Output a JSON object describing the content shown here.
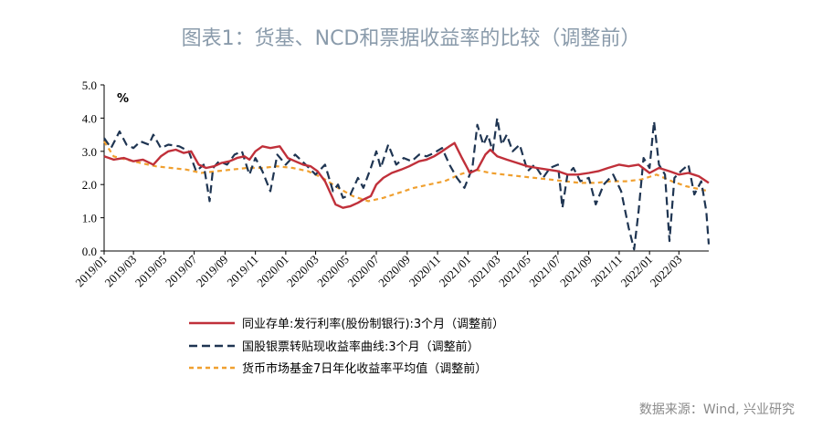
{
  "chart_data": {
    "type": "line",
    "title": "图表1：货基、NCD和票据收益率的比较（调整前）",
    "source": "数据来源：Wind, 兴业研究",
    "ylabel": "%",
    "ylim": [
      0,
      5
    ],
    "yticks": [
      "0.0",
      "1.0",
      "2.0",
      "3.0",
      "4.0",
      "5.0"
    ],
    "xticks": [
      "2019/01",
      "2019/03",
      "2019/05",
      "2019/07",
      "2019/09",
      "2019/11",
      "2020/01",
      "2020/03",
      "2020/05",
      "2020/07",
      "2020/09",
      "2020/11",
      "2021/01",
      "2021/03",
      "2021/05",
      "2021/07",
      "2021/09",
      "2021/11",
      "2022/01",
      "2022/03"
    ],
    "xrange": [
      "2019-01-01",
      "2022-04-30"
    ],
    "grid": false,
    "legend_position": "bottom",
    "series": [
      {
        "name": "同业存单:发行利率(股份制银行):3个月（调整前）",
        "color": "#c0303a",
        "dash": "solid",
        "points": [
          [
            "2019-01-01",
            2.85
          ],
          [
            "2019-01-20",
            2.75
          ],
          [
            "2019-02-10",
            2.8
          ],
          [
            "2019-03-01",
            2.7
          ],
          [
            "2019-03-20",
            2.75
          ],
          [
            "2019-04-10",
            2.6
          ],
          [
            "2019-04-25",
            2.85
          ],
          [
            "2019-05-10",
            3.0
          ],
          [
            "2019-05-25",
            3.05
          ],
          [
            "2019-06-10",
            2.95
          ],
          [
            "2019-06-25",
            3.0
          ],
          [
            "2019-07-10",
            2.6
          ],
          [
            "2019-07-25",
            2.5
          ],
          [
            "2019-08-10",
            2.55
          ],
          [
            "2019-08-25",
            2.65
          ],
          [
            "2019-09-10",
            2.7
          ],
          [
            "2019-09-25",
            2.8
          ],
          [
            "2019-10-10",
            2.85
          ],
          [
            "2019-10-20",
            2.75
          ],
          [
            "2019-11-01",
            3.0
          ],
          [
            "2019-11-15",
            3.15
          ],
          [
            "2019-12-01",
            3.1
          ],
          [
            "2019-12-20",
            3.15
          ],
          [
            "2020-01-05",
            2.8
          ],
          [
            "2020-01-20",
            2.7
          ],
          [
            "2020-02-05",
            2.6
          ],
          [
            "2020-02-20",
            2.55
          ],
          [
            "2020-03-05",
            2.4
          ],
          [
            "2020-03-20",
            2.1
          ],
          [
            "2020-04-01",
            1.7
          ],
          [
            "2020-04-10",
            1.4
          ],
          [
            "2020-04-25",
            1.3
          ],
          [
            "2020-05-10",
            1.35
          ],
          [
            "2020-05-25",
            1.45
          ],
          [
            "2020-06-05",
            1.55
          ],
          [
            "2020-06-20",
            1.65
          ],
          [
            "2020-07-01",
            2.0
          ],
          [
            "2020-07-15",
            2.2
          ],
          [
            "2020-08-01",
            2.35
          ],
          [
            "2020-08-20",
            2.45
          ],
          [
            "2020-09-05",
            2.55
          ],
          [
            "2020-09-25",
            2.7
          ],
          [
            "2020-10-10",
            2.75
          ],
          [
            "2020-10-25",
            2.85
          ],
          [
            "2020-11-10",
            3.0
          ],
          [
            "2020-11-25",
            3.15
          ],
          [
            "2020-12-05",
            3.25
          ],
          [
            "2020-12-20",
            2.8
          ],
          [
            "2021-01-05",
            2.35
          ],
          [
            "2021-01-20",
            2.45
          ],
          [
            "2021-02-05",
            2.9
          ],
          [
            "2021-02-15",
            3.05
          ],
          [
            "2021-03-01",
            2.85
          ],
          [
            "2021-03-20",
            2.75
          ],
          [
            "2021-04-10",
            2.65
          ],
          [
            "2021-05-01",
            2.55
          ],
          [
            "2021-05-20",
            2.5
          ],
          [
            "2021-06-10",
            2.45
          ],
          [
            "2021-07-01",
            2.4
          ],
          [
            "2021-07-20",
            2.3
          ],
          [
            "2021-08-10",
            2.3
          ],
          [
            "2021-09-01",
            2.35
          ],
          [
            "2021-09-20",
            2.4
          ],
          [
            "2021-10-10",
            2.5
          ],
          [
            "2021-11-01",
            2.6
          ],
          [
            "2021-11-20",
            2.55
          ],
          [
            "2021-12-10",
            2.6
          ],
          [
            "2022-01-01",
            2.35
          ],
          [
            "2022-01-20",
            2.5
          ],
          [
            "2022-02-10",
            2.4
          ],
          [
            "2022-03-01",
            2.3
          ],
          [
            "2022-03-20",
            2.35
          ],
          [
            "2022-04-10",
            2.25
          ],
          [
            "2022-04-30",
            2.05
          ]
        ]
      },
      {
        "name": "国股银票转贴现收益率曲线:3个月（调整前）",
        "color": "#1f3552",
        "dash": "long",
        "points": [
          [
            "2019-01-01",
            3.4
          ],
          [
            "2019-01-15",
            3.1
          ],
          [
            "2019-02-01",
            3.6
          ],
          [
            "2019-02-15",
            3.2
          ],
          [
            "2019-03-01",
            3.1
          ],
          [
            "2019-03-15",
            3.3
          ],
          [
            "2019-04-01",
            3.2
          ],
          [
            "2019-04-10",
            3.5
          ],
          [
            "2019-04-25",
            3.1
          ],
          [
            "2019-05-10",
            3.2
          ],
          [
            "2019-06-01",
            3.15
          ],
          [
            "2019-06-20",
            3.0
          ],
          [
            "2019-07-05",
            2.4
          ],
          [
            "2019-07-20",
            2.6
          ],
          [
            "2019-08-01",
            1.5
          ],
          [
            "2019-08-08",
            2.5
          ],
          [
            "2019-08-20",
            2.7
          ],
          [
            "2019-09-05",
            2.6
          ],
          [
            "2019-09-20",
            2.9
          ],
          [
            "2019-10-05",
            3.0
          ],
          [
            "2019-10-20",
            2.3
          ],
          [
            "2019-11-01",
            2.8
          ],
          [
            "2019-11-15",
            2.4
          ],
          [
            "2019-12-01",
            1.8
          ],
          [
            "2019-12-15",
            2.9
          ],
          [
            "2020-01-01",
            2.6
          ],
          [
            "2020-01-20",
            2.9
          ],
          [
            "2020-02-10",
            2.6
          ],
          [
            "2020-03-01",
            2.3
          ],
          [
            "2020-03-20",
            2.6
          ],
          [
            "2020-04-05",
            1.8
          ],
          [
            "2020-04-15",
            2.0
          ],
          [
            "2020-04-25",
            1.6
          ],
          [
            "2020-05-10",
            1.7
          ],
          [
            "2020-05-25",
            2.2
          ],
          [
            "2020-06-05",
            1.9
          ],
          [
            "2020-06-20",
            2.5
          ],
          [
            "2020-07-01",
            3.0
          ],
          [
            "2020-07-10",
            2.5
          ],
          [
            "2020-07-25",
            3.2
          ],
          [
            "2020-08-10",
            2.6
          ],
          [
            "2020-08-25",
            2.8
          ],
          [
            "2020-09-10",
            2.7
          ],
          [
            "2020-09-25",
            2.9
          ],
          [
            "2020-10-10",
            2.85
          ],
          [
            "2020-10-25",
            2.95
          ],
          [
            "2020-11-10",
            3.1
          ],
          [
            "2020-11-25",
            2.6
          ],
          [
            "2020-12-10",
            2.2
          ],
          [
            "2020-12-25",
            1.9
          ],
          [
            "2021-01-10",
            2.5
          ],
          [
            "2021-01-20",
            3.8
          ],
          [
            "2021-02-01",
            3.2
          ],
          [
            "2021-02-10",
            3.5
          ],
          [
            "2021-02-20",
            3.0
          ],
          [
            "2021-03-01",
            4.0
          ],
          [
            "2021-03-10",
            3.2
          ],
          [
            "2021-03-20",
            3.5
          ],
          [
            "2021-04-01",
            3.0
          ],
          [
            "2021-04-15",
            3.2
          ],
          [
            "2021-05-01",
            2.4
          ],
          [
            "2021-05-15",
            2.6
          ],
          [
            "2021-06-01",
            2.2
          ],
          [
            "2021-06-15",
            2.5
          ],
          [
            "2021-07-01",
            2.6
          ],
          [
            "2021-07-10",
            1.3
          ],
          [
            "2021-07-20",
            2.3
          ],
          [
            "2021-08-01",
            2.5
          ],
          [
            "2021-08-15",
            2.1
          ],
          [
            "2021-09-01",
            2.2
          ],
          [
            "2021-09-15",
            1.4
          ],
          [
            "2021-10-01",
            2.0
          ],
          [
            "2021-10-20",
            2.3
          ],
          [
            "2021-11-05",
            1.8
          ],
          [
            "2021-11-20",
            0.7
          ],
          [
            "2021-12-01",
            0.05
          ],
          [
            "2021-12-10",
            1.2
          ],
          [
            "2021-12-20",
            2.8
          ],
          [
            "2022-01-01",
            2.5
          ],
          [
            "2022-01-10",
            3.9
          ],
          [
            "2022-01-20",
            2.6
          ],
          [
            "2022-02-01",
            2.3
          ],
          [
            "2022-02-10",
            0.3
          ],
          [
            "2022-02-20",
            2.2
          ],
          [
            "2022-03-05",
            2.4
          ],
          [
            "2022-03-20",
            2.6
          ],
          [
            "2022-04-01",
            1.7
          ],
          [
            "2022-04-15",
            2.1
          ],
          [
            "2022-04-25",
            1.2
          ],
          [
            "2022-04-30",
            0.2
          ]
        ]
      },
      {
        "name": "货币市场基金7日年化收益率平均值（调整前）",
        "color": "#f0a030",
        "dash": "short",
        "points": [
          [
            "2019-01-01",
            3.3
          ],
          [
            "2019-01-20",
            2.85
          ],
          [
            "2019-02-15",
            2.75
          ],
          [
            "2019-03-15",
            2.65
          ],
          [
            "2019-04-15",
            2.55
          ],
          [
            "2019-05-15",
            2.5
          ],
          [
            "2019-06-15",
            2.45
          ],
          [
            "2019-07-15",
            2.35
          ],
          [
            "2019-08-15",
            2.4
          ],
          [
            "2019-09-15",
            2.45
          ],
          [
            "2019-10-15",
            2.5
          ],
          [
            "2019-11-15",
            2.5
          ],
          [
            "2019-12-15",
            2.55
          ],
          [
            "2020-01-15",
            2.5
          ],
          [
            "2020-02-15",
            2.4
          ],
          [
            "2020-03-15",
            2.2
          ],
          [
            "2020-04-15",
            1.9
          ],
          [
            "2020-05-15",
            1.65
          ],
          [
            "2020-06-15",
            1.5
          ],
          [
            "2020-07-15",
            1.6
          ],
          [
            "2020-08-15",
            1.75
          ],
          [
            "2020-09-15",
            1.9
          ],
          [
            "2020-10-15",
            2.0
          ],
          [
            "2020-11-15",
            2.1
          ],
          [
            "2020-12-15",
            2.3
          ],
          [
            "2021-01-15",
            2.45
          ],
          [
            "2021-02-15",
            2.35
          ],
          [
            "2021-03-15",
            2.3
          ],
          [
            "2021-04-15",
            2.25
          ],
          [
            "2021-05-15",
            2.2
          ],
          [
            "2021-06-15",
            2.15
          ],
          [
            "2021-07-15",
            2.1
          ],
          [
            "2021-08-15",
            2.05
          ],
          [
            "2021-09-15",
            2.05
          ],
          [
            "2021-10-15",
            2.1
          ],
          [
            "2021-11-15",
            2.1
          ],
          [
            "2021-12-15",
            2.15
          ],
          [
            "2022-01-15",
            2.3
          ],
          [
            "2022-02-15",
            2.1
          ],
          [
            "2022-03-15",
            1.95
          ],
          [
            "2022-04-15",
            1.85
          ],
          [
            "2022-04-30",
            1.8
          ]
        ]
      }
    ]
  }
}
